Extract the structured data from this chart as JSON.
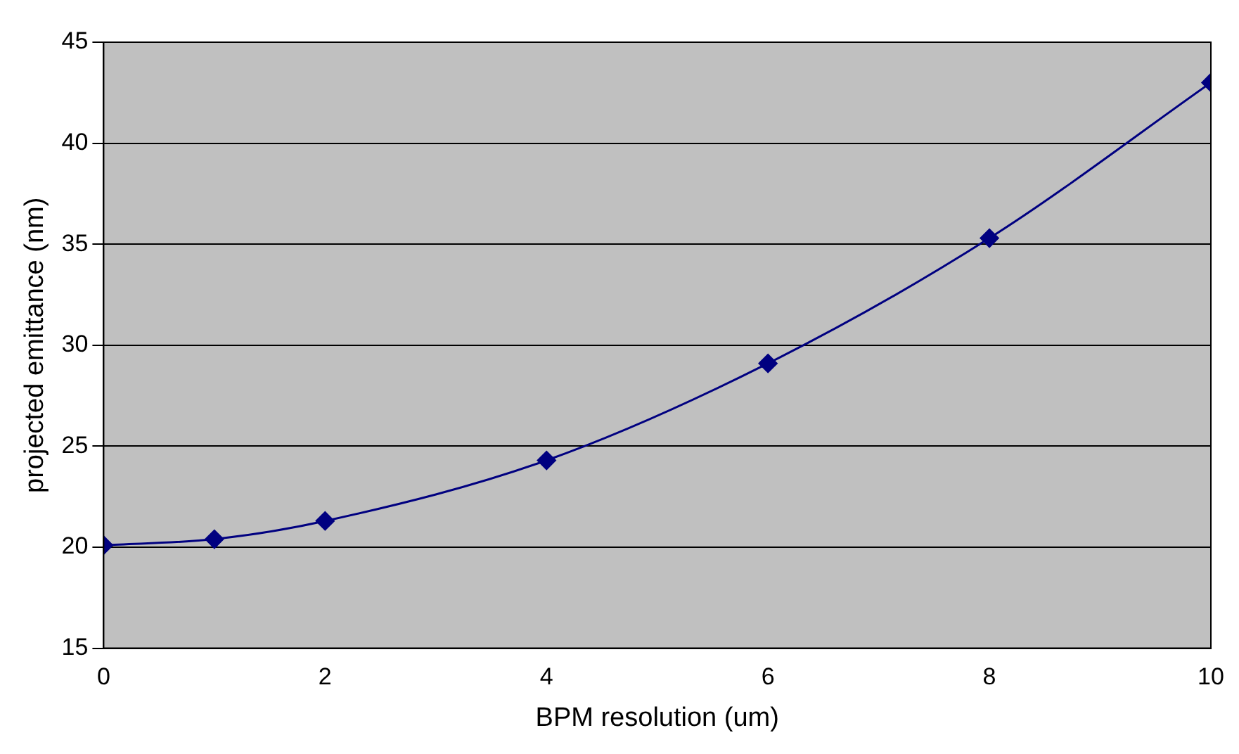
{
  "chart_data": {
    "type": "line",
    "xlabel": "BPM resolution (um)",
    "ylabel": "projected emittance (nm)",
    "x": [
      0,
      1,
      2,
      4,
      6,
      8,
      10
    ],
    "series": [
      {
        "color": "#000080",
        "values": [
          20.1,
          20.4,
          21.3,
          24.3,
          29.1,
          35.3,
          43.0
        ]
      }
    ],
    "xlim": [
      0,
      10
    ],
    "xticks": [
      0,
      2,
      4,
      6,
      8,
      10
    ],
    "ylim": [
      15,
      45
    ],
    "yticks": [
      15,
      20,
      25,
      30,
      35,
      40,
      45
    ],
    "grid": "y",
    "legend": false,
    "marker": "diamond",
    "line_style": "solid"
  }
}
